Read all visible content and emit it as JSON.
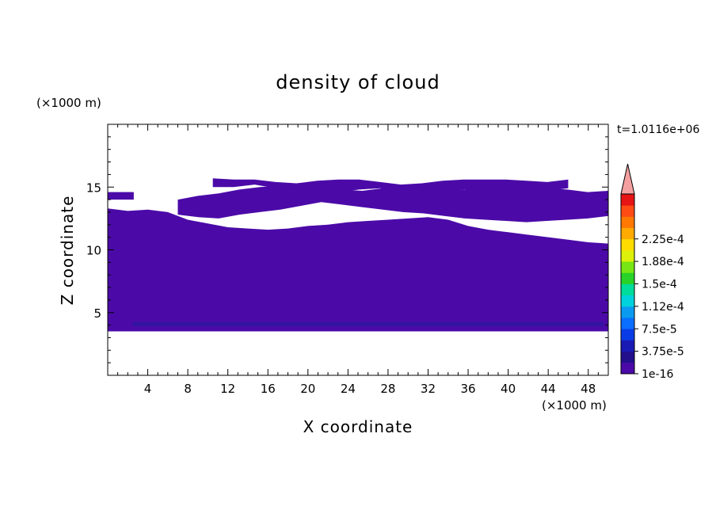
{
  "chart_data": {
    "type": "heatmap",
    "title": "density of cloud",
    "xlabel": "X coordinate",
    "ylabel": "Z coordinate",
    "x_unit": "(×1000 m)",
    "y_unit": "(×1000 m)",
    "time_label": "t=1.0116e+06",
    "xlim": [
      0,
      50
    ],
    "ylim": [
      0,
      20
    ],
    "xticks": [
      4,
      8,
      12,
      16,
      20,
      24,
      28,
      32,
      36,
      40,
      44,
      48
    ],
    "yticks": [
      5,
      10,
      15
    ],
    "colorbar": {
      "labels": [
        "1e-16",
        "3.75e-5",
        "7.5e-5",
        "1.12e-4",
        "1.5e-4",
        "1.88e-4",
        "2.25e-4"
      ],
      "colors": [
        "#4b0aa8",
        "#230f8c",
        "#1a1ab4",
        "#0a3ce6",
        "#0a6eff",
        "#0a9bf0",
        "#00d2dc",
        "#00dc9b",
        "#28d228",
        "#78e614",
        "#dcf00a",
        "#ffdc00",
        "#ffaa00",
        "#ff7800",
        "#ff4b14",
        "#e61414"
      ],
      "extend_color": "#f5a0a0"
    },
    "cloud_band": {
      "fill_color": "#4b0aa8",
      "base_dark_color": "#2a18a0",
      "base_z": 3.5,
      "main_top_z": [
        13.3,
        13.1,
        13.2,
        13.0,
        12.4,
        12.1,
        11.8,
        11.7,
        11.6,
        11.7,
        11.9,
        12.0,
        12.2,
        12.3,
        12.4,
        12.5,
        12.6,
        12.4,
        11.9,
        11.6,
        11.4,
        11.2,
        11.0,
        10.8,
        10.6,
        10.5
      ],
      "upper_layer": {
        "x_start": 7,
        "x_end": 50,
        "bottom_z": [
          12.8,
          12.6,
          12.5,
          12.8,
          13.0,
          13.2,
          13.5,
          13.8,
          13.6,
          13.4,
          13.2,
          13.0,
          12.9,
          12.7,
          12.5,
          12.4,
          12.3,
          12.2,
          12.3,
          12.4,
          12.5,
          12.7
        ],
        "top_z": [
          14.0,
          14.3,
          14.5,
          14.8,
          15.0,
          15.1,
          15.2,
          15.0,
          14.8,
          14.7,
          14.9,
          15.0,
          14.9,
          14.7,
          14.8,
          15.2,
          15.3,
          15.1,
          14.9,
          14.8,
          14.6,
          14.7
        ]
      },
      "topmost_layer": {
        "x_start": 10.5,
        "x_end": 46,
        "bottom_z": [
          15.0,
          15.0,
          15.2,
          14.9,
          14.6,
          14.5,
          14.6,
          14.8,
          14.9,
          14.7,
          14.5,
          14.6,
          14.8,
          14.9,
          14.9,
          14.8,
          14.7,
          14.9
        ],
        "top_z": [
          15.7,
          15.6,
          15.6,
          15.4,
          15.3,
          15.5,
          15.6,
          15.6,
          15.4,
          15.2,
          15.3,
          15.5,
          15.6,
          15.6,
          15.6,
          15.5,
          15.4,
          15.6
        ]
      }
    }
  }
}
